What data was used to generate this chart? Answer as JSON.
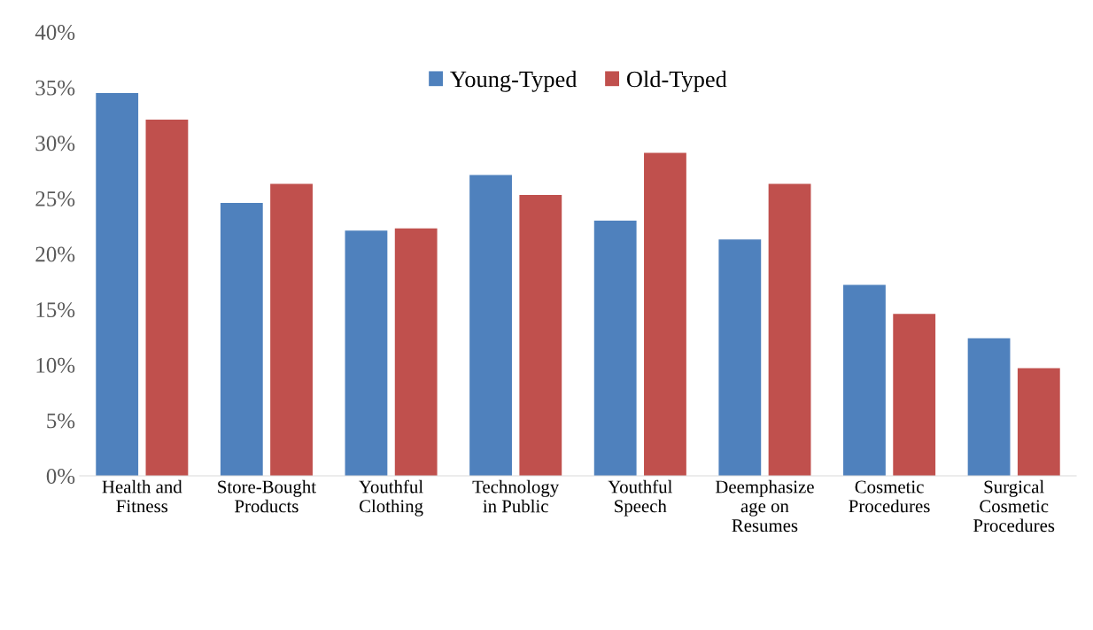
{
  "chart_data": {
    "type": "bar",
    "categories": [
      "Health and\nFitness",
      "Store-Bought\nProducts",
      "Youthful\nClothing",
      "Technology\nin Public",
      "Youthful\nSpeech",
      "Deemphasize\nage on\nResumes",
      "Cosmetic\nProcedures",
      "Surgical\nCosmetic\nProcedures"
    ],
    "series": [
      {
        "name": "Young-Typed",
        "color": "#4f81bd",
        "values": [
          34.5,
          24.6,
          22.1,
          27.1,
          23.0,
          21.3,
          17.2,
          12.4
        ]
      },
      {
        "name": "Old-Typed",
        "color": "#c0504d",
        "values": [
          32.1,
          26.3,
          22.3,
          25.3,
          29.1,
          26.3,
          14.6,
          9.7
        ]
      }
    ],
    "ylim": [
      0,
      40
    ],
    "yticks": [
      {
        "value": 0,
        "label": "0%"
      },
      {
        "value": 5,
        "label": "5%"
      },
      {
        "value": 10,
        "label": "10%"
      },
      {
        "value": 15,
        "label": "15%"
      },
      {
        "value": 20,
        "label": "20%"
      },
      {
        "value": 25,
        "label": "25%"
      },
      {
        "value": 30,
        "label": "30%"
      },
      {
        "value": 35,
        "label": "35%"
      },
      {
        "value": 40,
        "label": "40%"
      }
    ],
    "grid": false,
    "legend": "top"
  }
}
